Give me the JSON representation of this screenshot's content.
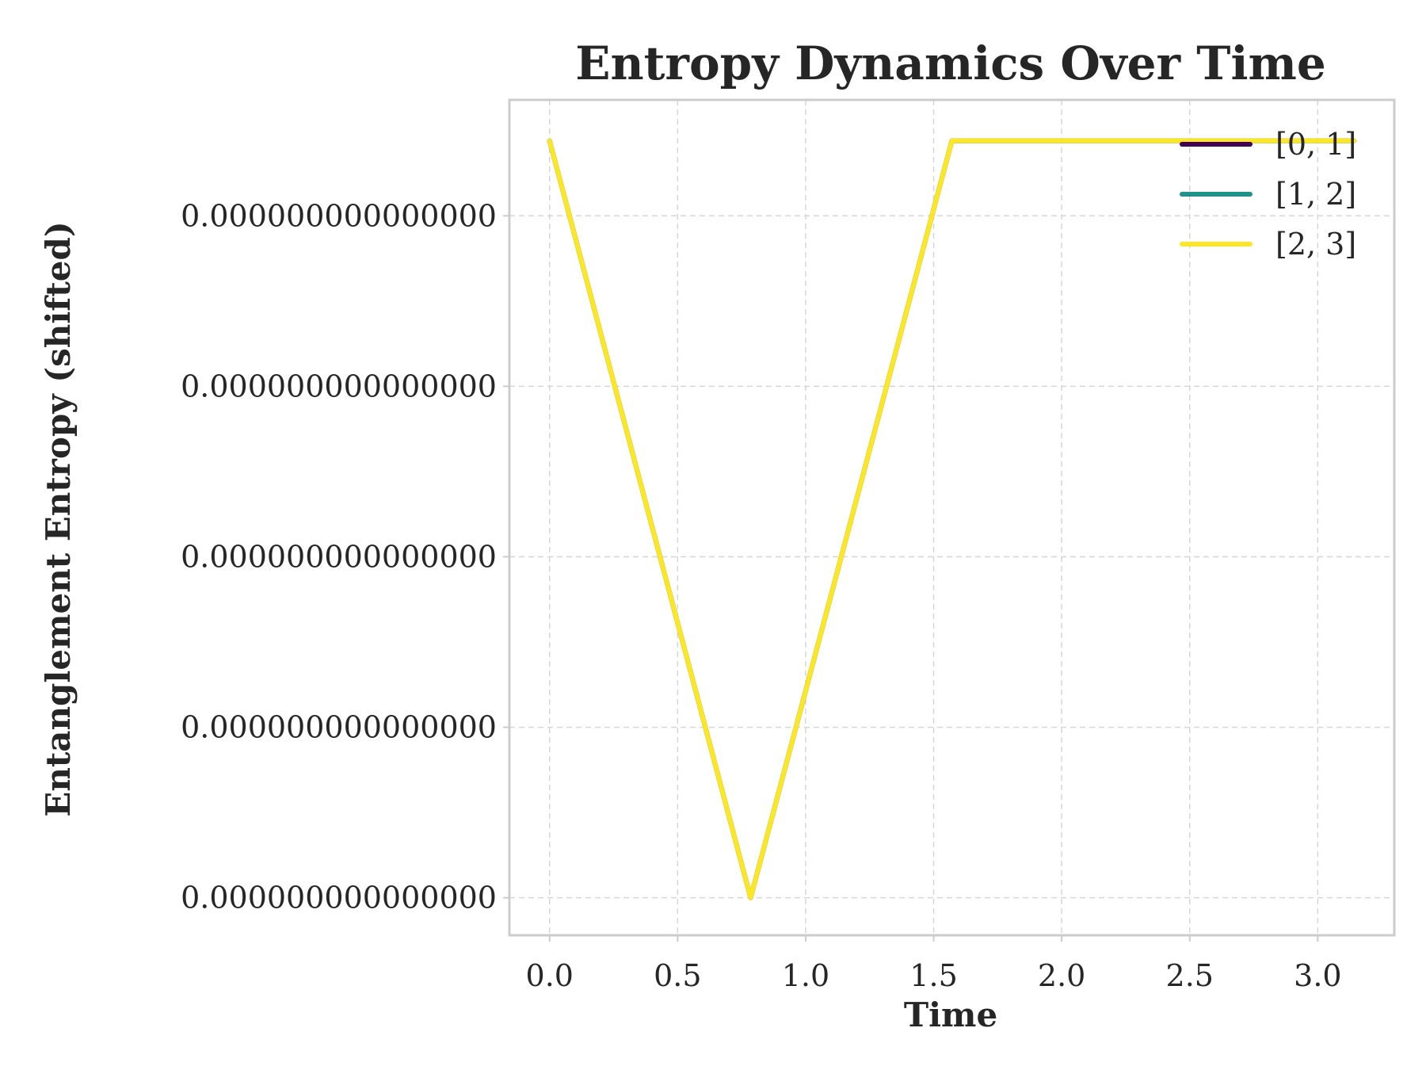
{
  "chart_data": {
    "type": "line",
    "title": "Entropy Dynamics Over Time",
    "xlabel": "Time",
    "ylabel": "Entanglement Entropy (shifted)",
    "xlim": [
      -0.157,
      3.299
    ],
    "ylim": [
      -0.11,
      2.34
    ],
    "x_ticks": [
      {
        "value": 0.0,
        "label": "0.0"
      },
      {
        "value": 0.5,
        "label": "0.5"
      },
      {
        "value": 1.0,
        "label": "1.0"
      },
      {
        "value": 1.5,
        "label": "1.5"
      },
      {
        "value": 2.0,
        "label": "2.0"
      },
      {
        "value": 2.5,
        "label": "2.5"
      },
      {
        "value": 3.0,
        "label": "3.0"
      }
    ],
    "y_ticks": [
      {
        "value": 0,
        "label": "0.000000000000000"
      },
      {
        "value": 0.5,
        "label": "0.000000000000000"
      },
      {
        "value": 1.0,
        "label": "0.000000000000000"
      },
      {
        "value": 1.5,
        "label": "0.000000000000000"
      },
      {
        "value": 2.0,
        "label": "0.000000000000000"
      }
    ],
    "grid": true,
    "legend_position": "top-right",
    "series": [
      {
        "name": "[0, 1]",
        "color": "#440154",
        "x": [
          0.0,
          0.785,
          1.571,
          3.142
        ],
        "y": [
          2.22,
          0.0,
          2.22,
          2.22
        ]
      },
      {
        "name": "[1, 2]",
        "color": "#21918c",
        "x": [
          0.0,
          0.785,
          1.571,
          3.142
        ],
        "y": [
          2.22,
          0.0,
          2.22,
          2.22
        ]
      },
      {
        "name": "[2, 3]",
        "color": "#fde725",
        "x": [
          0.0,
          0.785,
          1.571,
          3.142
        ],
        "y": [
          2.22,
          0.0,
          2.22,
          2.22
        ]
      }
    ]
  }
}
